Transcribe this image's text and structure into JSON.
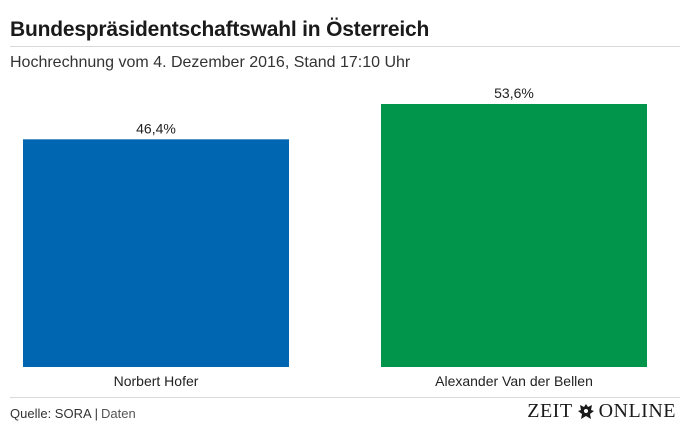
{
  "header": {
    "title": "Bundespräsidentschaftswahl in Österreich",
    "subtitle": "Hochrechnung vom 4. Dezember 2016, Stand 17:10 Uhr"
  },
  "chart_data": {
    "type": "bar",
    "categories": [
      "Norbert Hofer",
      "Alexander Van der Bellen"
    ],
    "values": [
      46.4,
      53.6
    ],
    "value_labels": [
      "46,4%",
      "53,6%"
    ],
    "colors": [
      "#0066b1",
      "#00954a"
    ],
    "ylim": [
      0,
      53.6
    ],
    "grid": false,
    "legend": "none"
  },
  "footer": {
    "source_label": "Quelle: SORA",
    "separator": "|",
    "data_link": "Daten",
    "brand_left": "ZEIT",
    "brand_right": "ONLINE",
    "crest_icon": "eagle-crest-icon"
  }
}
